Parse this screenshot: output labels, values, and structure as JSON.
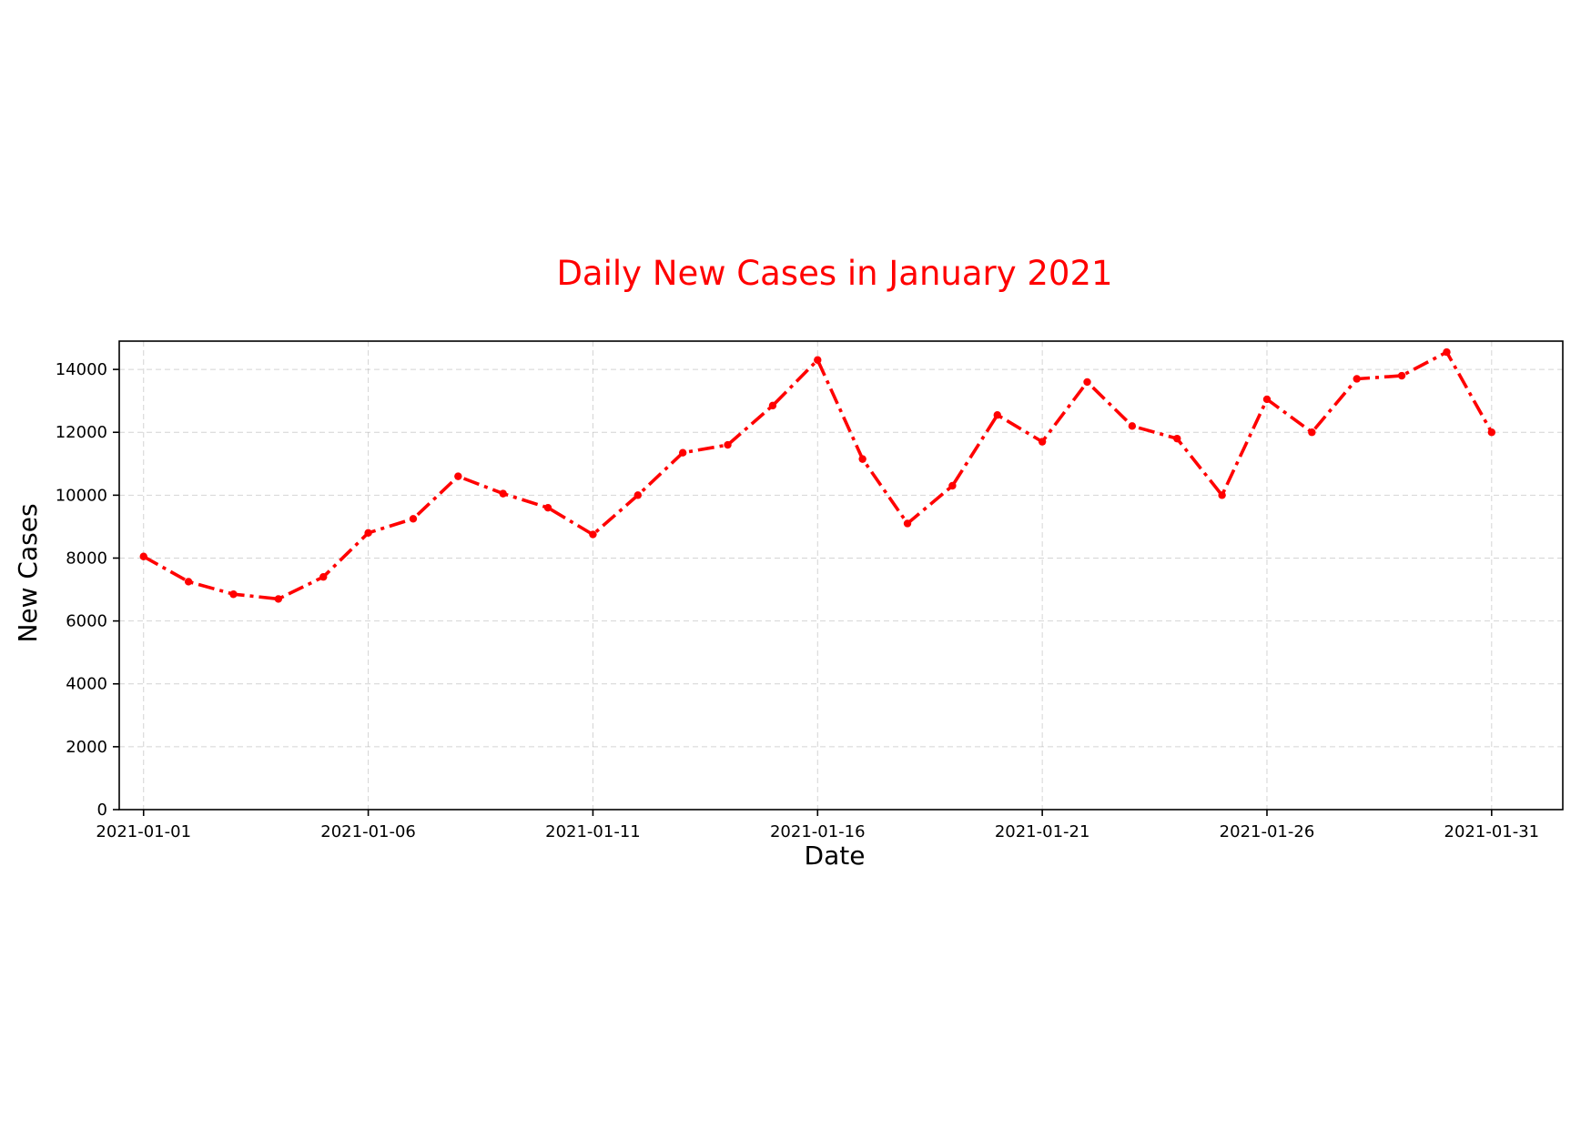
{
  "chart_data": {
    "type": "line",
    "title": "Daily New Cases in January 2021",
    "xlabel": "Date",
    "ylabel": "New Cases",
    "x": [
      "2021-01-01",
      "2021-01-02",
      "2021-01-03",
      "2021-01-04",
      "2021-01-05",
      "2021-01-06",
      "2021-01-07",
      "2021-01-08",
      "2021-01-09",
      "2021-01-10",
      "2021-01-11",
      "2021-01-12",
      "2021-01-13",
      "2021-01-14",
      "2021-01-15",
      "2021-01-16",
      "2021-01-17",
      "2021-01-18",
      "2021-01-19",
      "2021-01-20",
      "2021-01-21",
      "2021-01-22",
      "2021-01-23",
      "2021-01-24",
      "2021-01-25",
      "2021-01-26",
      "2021-01-27",
      "2021-01-28",
      "2021-01-29",
      "2021-01-30",
      "2021-01-31"
    ],
    "series": [
      {
        "values": [
          8050,
          7250,
          6850,
          6700,
          7400,
          8800,
          9250,
          10600,
          10050,
          9600,
          8750,
          10000,
          11350,
          11600,
          12850,
          14300,
          11150,
          9100,
          10300,
          12550,
          11700,
          13600,
          12200,
          11800,
          10000,
          13050,
          12000,
          13700,
          13800,
          14550,
          12000
        ],
        "color": "#ff0000",
        "line_style": "dash-dot",
        "marker": "circle"
      }
    ],
    "x_tick_labels": [
      "2021-01-01",
      "2021-01-06",
      "2021-01-11",
      "2021-01-16",
      "2021-01-21",
      "2021-01-26",
      "2021-01-31"
    ],
    "y_ticks": [
      0,
      2000,
      4000,
      6000,
      8000,
      10000,
      12000,
      14000
    ],
    "ylim": [
      0,
      14900
    ],
    "xlim": [
      "2020-12-31T11:00",
      "2021-02-01T14:00"
    ],
    "grid": true,
    "title_color": "#ff0000"
  }
}
